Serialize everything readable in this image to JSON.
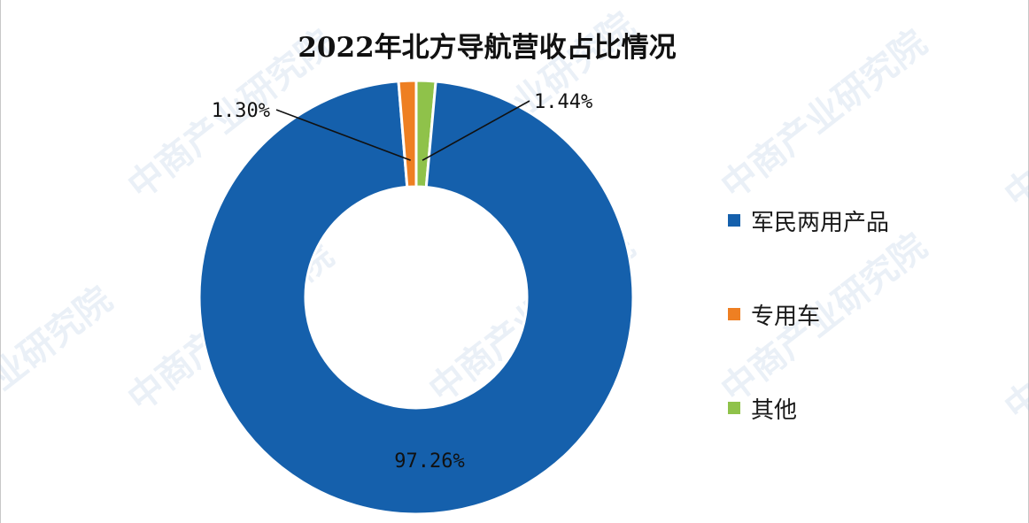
{
  "watermark_text": "中商产业研究院",
  "chart_data": {
    "type": "pie",
    "variant": "donut",
    "title": "2022年北方导航营收占比情况",
    "categories": [
      "军民两用产品",
      "专用车",
      "其他"
    ],
    "values": [
      97.26,
      1.3,
      1.44
    ],
    "labels": [
      "97.26%",
      "1.30%",
      "1.44%"
    ],
    "colors": [
      "#1560ac",
      "#ee7f22",
      "#8fc24a"
    ],
    "legend_position": "right"
  }
}
